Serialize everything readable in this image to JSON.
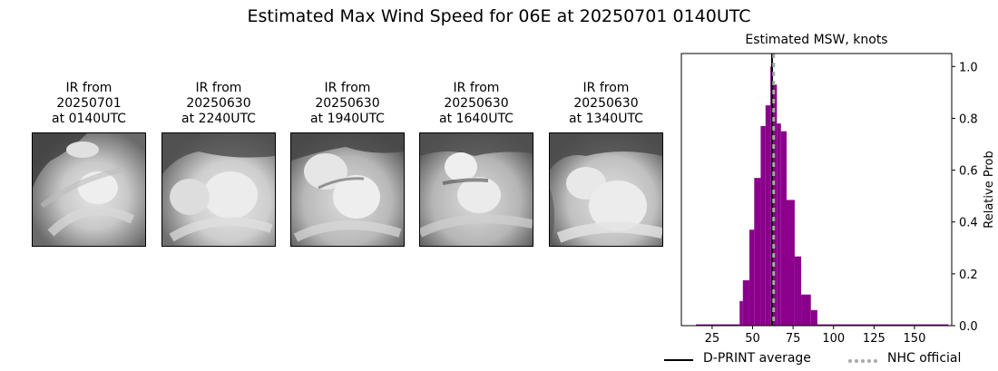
{
  "figure": {
    "title": "Estimated Max Wind Speed for 06E at 20250701 0140UTC"
  },
  "ir_panels": [
    {
      "label": "IR from\n20250701\nat 0140UTC",
      "line1": "IR from",
      "line2": "20250701",
      "line3": "at 0140UTC"
    },
    {
      "label": "IR from\n20250630\nat 2240UTC",
      "line1": "IR from",
      "line2": "20250630",
      "line3": "at 2240UTC"
    },
    {
      "label": "IR from\n20250630\nat 1940UTC",
      "line1": "IR from",
      "line2": "20250630",
      "line3": "at 1940UTC"
    },
    {
      "label": "IR from\n20250630\nat 1640UTC",
      "line1": "IR from",
      "line2": "20250630",
      "line3": "at 1640UTC"
    },
    {
      "label": "IR from\n20250630\nat 1340UTC",
      "line1": "IR from",
      "line2": "20250630",
      "line3": "at 1340UTC"
    }
  ],
  "colors": {
    "bar": "#8b008b",
    "dprint_line": "#000000",
    "nhc_line": "#a9a9a9"
  },
  "chart_data": {
    "type": "bar",
    "title": "Estimated MSW, knots",
    "xlabel": "",
    "ylabel": "Relative Prob",
    "xlim": [
      6,
      173
    ],
    "ylim": [
      0,
      1.05
    ],
    "xticks": [
      25,
      50,
      75,
      100,
      125,
      150
    ],
    "yticks": [
      0.0,
      0.2,
      0.4,
      0.6,
      0.8,
      1.0
    ],
    "ytick_labels": [
      "0.0",
      "0.2",
      "0.4",
      "0.6",
      "0.8",
      "1.0"
    ],
    "y_axis_position": "right",
    "grid": false,
    "bins": [
      {
        "x0": 15,
        "x1": 42,
        "value": 0.005
      },
      {
        "x0": 42,
        "x1": 44,
        "value": 0.095
      },
      {
        "x0": 44,
        "x1": 48,
        "value": 0.175
      },
      {
        "x0": 48,
        "x1": 51,
        "value": 0.37
      },
      {
        "x0": 51,
        "x1": 55,
        "value": 0.57
      },
      {
        "x0": 55,
        "x1": 58,
        "value": 0.77
      },
      {
        "x0": 58,
        "x1": 61,
        "value": 0.85
      },
      {
        "x0": 61,
        "x1": 62.5,
        "value": 1.0
      },
      {
        "x0": 62.5,
        "x1": 65,
        "value": 0.93
      },
      {
        "x0": 65,
        "x1": 67.5,
        "value": 0.78
      },
      {
        "x0": 67.5,
        "x1": 71,
        "value": 0.75
      },
      {
        "x0": 71,
        "x1": 76,
        "value": 0.485
      },
      {
        "x0": 76,
        "x1": 80,
        "value": 0.267
      },
      {
        "x0": 80,
        "x1": 86,
        "value": 0.12
      },
      {
        "x0": 86,
        "x1": 90,
        "value": 0.06
      },
      {
        "x0": 90,
        "x1": 171,
        "value": 0.005
      }
    ],
    "vlines": [
      {
        "name": "D-PRINT average",
        "x": 62,
        "style": "solid",
        "color": "#000000"
      },
      {
        "name": "NHC official",
        "x": 63,
        "style": "dotted",
        "color": "#a9a9a9"
      }
    ],
    "legend": {
      "position": "bottom",
      "entries": [
        "D-PRINT average",
        "NHC official"
      ]
    }
  },
  "legend": {
    "dprint_label": "D-PRINT average",
    "nhc_label": "NHC official"
  }
}
